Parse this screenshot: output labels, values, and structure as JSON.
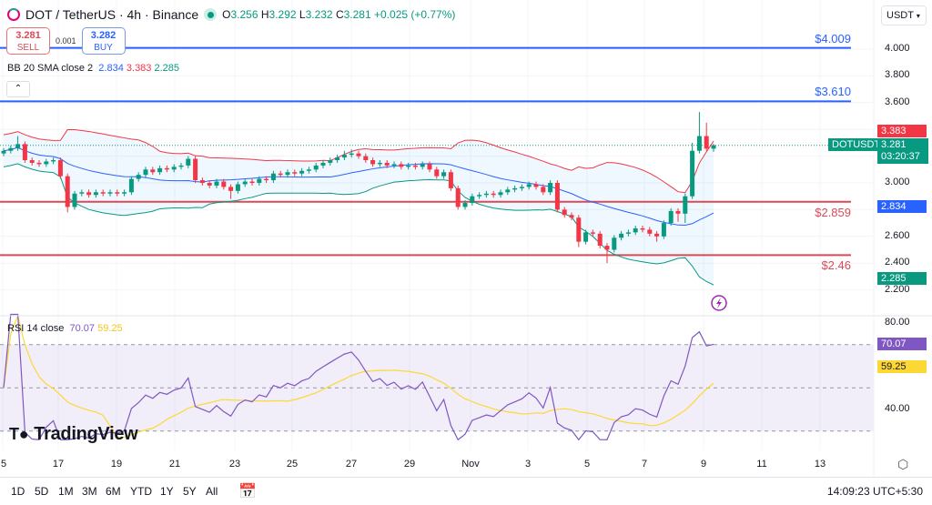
{
  "header": {
    "symbol": "DOT / TetherUS · 4h · Binance",
    "open_label": "O",
    "open": "3.256",
    "high_label": "H",
    "high": "3.292",
    "low_label": "L",
    "low": "3.232",
    "close_label": "C",
    "close": "3.281",
    "change": "+0.025 (+0.77%)",
    "currency": "USDT"
  },
  "trade": {
    "sell_price": "3.281",
    "sell_label": "SELL",
    "spread": "0.001",
    "buy_price": "3.282",
    "buy_label": "BUY"
  },
  "bb_legend": {
    "label": "BB 20 SMA close 2",
    "basis": "2.834",
    "upper": "3.383",
    "lower": "2.285"
  },
  "rsi_legend": {
    "label": "RSI 14 close",
    "rsi": "70.07",
    "ma": "59.25"
  },
  "price_axis": {
    "ticks": [
      "4.000",
      "3.800",
      "3.600",
      "3.000",
      "2.600",
      "2.400",
      "2.200"
    ],
    "ticks_values": [
      4.0,
      3.8,
      3.6,
      3.0,
      2.6,
      2.4,
      2.2
    ],
    "tags": {
      "upper": "3.383",
      "symbol": "DOTUSDT",
      "last": "3.281",
      "countdown": "03:20:37",
      "basis": "2.834",
      "lower": "2.285"
    }
  },
  "rsi_axis": {
    "ticks": [
      "80.00",
      "40.00"
    ],
    "tags": {
      "rsi": "70.07",
      "ma": "59.25"
    }
  },
  "time_axis": [
    "5",
    "17",
    "19",
    "21",
    "23",
    "25",
    "27",
    "29",
    "Nov",
    "3",
    "5",
    "7",
    "9",
    "11",
    "13"
  ],
  "levels": [
    {
      "label": "$4.009",
      "value": 4.009,
      "color": "#2962ff"
    },
    {
      "label": "$3.610",
      "value": 3.61,
      "color": "#2962ff"
    },
    {
      "label": "$2.859",
      "value": 2.859,
      "color": "#d84b56"
    },
    {
      "label": "$2.46",
      "value": 2.46,
      "color": "#d84b56"
    }
  ],
  "bottom": {
    "ranges": [
      "1D",
      "5D",
      "1M",
      "3M",
      "6M",
      "YTD",
      "1Y",
      "5Y",
      "All"
    ],
    "clock": "14:09:23 UTC+5:30"
  },
  "logo": "TradingView",
  "colors": {
    "up": "#089981",
    "down": "#f23645",
    "bb_basis": "#2962ff",
    "bb_upper": "#f23645",
    "bb_lower": "#089981",
    "rsi": "#7e57c2",
    "rsi_ma": "#fdd835"
  },
  "chart_data": {
    "type": "candlestick",
    "title": "DOT / TetherUS · 4h · Binance",
    "ylim": [
      2.1,
      4.1
    ],
    "indicators": [
      "BB 20 SMA close 2",
      "RSI 14 close"
    ],
    "rsi_ylim": [
      25,
      85
    ],
    "rsi_bands": [
      70,
      50,
      30
    ],
    "grid": true,
    "open": [
      3.22,
      3.24,
      3.26,
      3.29,
      3.17,
      3.15,
      3.14,
      3.16,
      3.17,
      3.05,
      2.82,
      2.92,
      2.93,
      2.91,
      2.93,
      2.92,
      2.93,
      2.92,
      2.93,
      3.03,
      3.06,
      3.1,
      3.08,
      3.11,
      3.1,
      3.12,
      3.13,
      3.18,
      3.02,
      3.0,
      2.98,
      3.01,
      2.97,
      2.94,
      2.99,
      3.01,
      3.0,
      3.03,
      3.02,
      3.07,
      3.06,
      3.08,
      3.07,
      3.09,
      3.1,
      3.13,
      3.15,
      3.17,
      3.19,
      3.21,
      3.22,
      3.2,
      3.17,
      3.14,
      3.15,
      3.13,
      3.14,
      3.12,
      3.13,
      3.12,
      3.14,
      3.1,
      3.05,
      3.08,
      2.96,
      2.82,
      2.85,
      2.9,
      2.91,
      2.92,
      2.91,
      2.93,
      2.95,
      2.96,
      2.97,
      2.99,
      2.97,
      2.93,
      3.0,
      2.8,
      2.76,
      2.74,
      2.56,
      2.63,
      2.62,
      2.53,
      2.5,
      2.59,
      2.62,
      2.63,
      2.66,
      2.65,
      2.62,
      2.6,
      2.7,
      2.79,
      2.77,
      2.9,
      3.24,
      3.35,
      3.256
    ],
    "high": [
      3.26,
      3.28,
      3.35,
      3.31,
      3.19,
      3.17,
      3.18,
      3.19,
      3.19,
      3.07,
      2.94,
      2.95,
      2.95,
      2.95,
      2.95,
      2.95,
      2.95,
      2.95,
      3.05,
      3.08,
      3.12,
      3.12,
      3.13,
      3.13,
      3.14,
      3.15,
      3.2,
      3.2,
      3.04,
      3.02,
      3.03,
      3.03,
      2.99,
      3.01,
      3.03,
      3.03,
      3.05,
      3.05,
      3.09,
      3.09,
      3.1,
      3.1,
      3.11,
      3.12,
      3.15,
      3.17,
      3.19,
      3.21,
      3.24,
      3.25,
      3.24,
      3.22,
      3.19,
      3.17,
      3.17,
      3.16,
      3.16,
      3.15,
      3.15,
      3.16,
      3.16,
      3.12,
      3.1,
      3.1,
      2.98,
      2.87,
      2.92,
      2.93,
      2.94,
      2.94,
      2.95,
      2.97,
      2.98,
      2.99,
      3.01,
      3.01,
      2.99,
      3.02,
      3.02,
      2.82,
      2.78,
      2.76,
      2.65,
      2.65,
      2.64,
      2.55,
      2.61,
      2.64,
      2.65,
      2.68,
      2.68,
      2.67,
      2.64,
      2.72,
      2.81,
      2.81,
      2.92,
      3.3,
      3.53,
      3.45,
      3.292
    ],
    "low": [
      3.2,
      3.22,
      3.24,
      3.15,
      3.13,
      3.12,
      3.12,
      3.14,
      3.03,
      2.78,
      2.8,
      2.9,
      2.89,
      2.89,
      2.9,
      2.9,
      2.9,
      2.9,
      2.91,
      3.01,
      3.04,
      3.06,
      3.06,
      3.08,
      3.08,
      3.1,
      3.11,
      3.0,
      2.98,
      2.96,
      2.96,
      2.95,
      2.88,
      2.92,
      2.97,
      2.98,
      2.98,
      3.0,
      3.0,
      3.04,
      3.04,
      3.05,
      3.05,
      3.07,
      3.08,
      3.11,
      3.13,
      3.15,
      3.17,
      3.19,
      3.18,
      3.15,
      3.12,
      3.12,
      3.11,
      3.11,
      3.1,
      3.1,
      3.1,
      3.1,
      3.08,
      3.03,
      3.03,
      2.94,
      2.8,
      2.8,
      2.83,
      2.88,
      2.89,
      2.89,
      2.89,
      2.91,
      2.93,
      2.94,
      2.95,
      2.95,
      2.91,
      2.91,
      2.78,
      2.74,
      2.72,
      2.52,
      2.54,
      2.6,
      2.51,
      2.4,
      2.48,
      2.57,
      2.6,
      2.61,
      2.63,
      2.6,
      2.56,
      2.58,
      2.68,
      2.71,
      2.7,
      2.88,
      3.22,
      3.24,
      3.232
    ],
    "close": [
      3.24,
      3.26,
      3.29,
      3.17,
      3.15,
      3.14,
      3.16,
      3.17,
      3.05,
      2.82,
      2.92,
      2.93,
      2.91,
      2.93,
      2.92,
      2.93,
      2.92,
      2.93,
      3.03,
      3.06,
      3.1,
      3.08,
      3.11,
      3.1,
      3.12,
      3.13,
      3.18,
      3.02,
      3.0,
      2.98,
      3.01,
      2.97,
      2.94,
      2.99,
      3.01,
      3.0,
      3.03,
      3.02,
      3.07,
      3.06,
      3.08,
      3.07,
      3.09,
      3.1,
      3.13,
      3.15,
      3.17,
      3.19,
      3.21,
      3.22,
      3.2,
      3.17,
      3.14,
      3.15,
      3.13,
      3.14,
      3.12,
      3.13,
      3.12,
      3.14,
      3.1,
      3.05,
      3.08,
      2.96,
      2.82,
      2.85,
      2.9,
      2.91,
      2.92,
      2.91,
      2.93,
      2.95,
      2.96,
      2.97,
      2.99,
      2.97,
      2.93,
      3.0,
      2.8,
      2.76,
      2.74,
      2.56,
      2.63,
      2.62,
      2.53,
      2.5,
      2.59,
      2.62,
      2.63,
      2.66,
      2.65,
      2.62,
      2.6,
      2.7,
      2.79,
      2.77,
      2.9,
      3.24,
      3.35,
      3.256,
      3.281
    ]
  }
}
